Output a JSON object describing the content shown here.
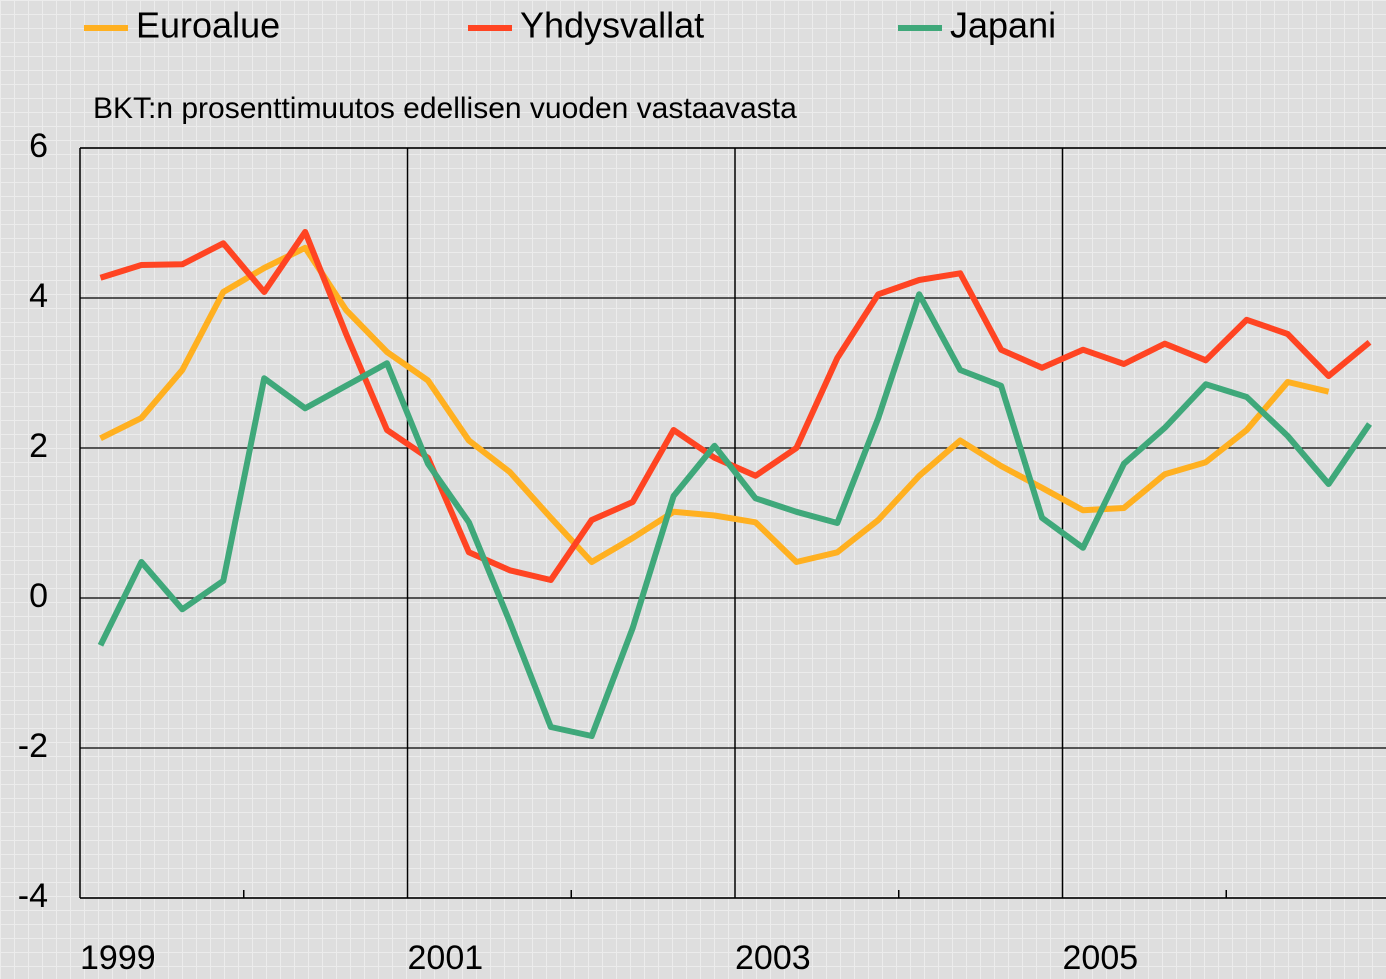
{
  "chart_data": {
    "type": "line",
    "subtitle": "BKT:n prosenttimuutos edellisen vuoden vastaavasta",
    "categories": [
      "1999",
      null,
      null,
      null,
      null,
      null,
      null,
      null,
      "2001",
      null,
      null,
      null,
      null,
      null,
      null,
      null,
      "2003",
      null,
      null,
      null,
      null,
      null,
      null,
      null,
      "2005",
      null,
      null,
      null,
      null,
      null,
      null,
      null
    ],
    "series": [
      {
        "name": "Euroalue",
        "color": "#ffb020",
        "values": [
          2.13,
          2.4,
          3.04,
          4.08,
          4.4,
          4.67,
          3.84,
          3.28,
          2.9,
          2.1,
          1.68,
          1.07,
          0.48,
          0.8,
          1.15,
          1.1,
          1.01,
          0.48,
          0.61,
          1.04,
          1.63,
          2.1,
          1.76,
          1.47,
          1.17,
          1.2,
          1.65,
          1.81,
          2.24,
          2.88,
          2.75,
          null
        ]
      },
      {
        "name": "Yhdysvallat",
        "color": "#ff4422",
        "values": [
          4.27,
          4.44,
          4.45,
          4.73,
          4.08,
          4.88,
          3.52,
          2.24,
          1.87,
          0.61,
          0.37,
          0.24,
          1.04,
          1.28,
          2.24,
          1.87,
          1.63,
          2.0,
          3.2,
          4.05,
          4.24,
          4.33,
          3.31,
          3.07,
          3.31,
          3.12,
          3.39,
          3.17,
          3.71,
          3.52,
          2.96,
          3.41
        ]
      },
      {
        "name": "Japani",
        "color": "#3fa87a",
        "values": [
          -0.63,
          0.48,
          -0.15,
          0.23,
          2.93,
          2.53,
          2.83,
          3.13,
          1.79,
          1.01,
          -0.32,
          -1.72,
          -1.84,
          -0.4,
          1.36,
          2.03,
          1.33,
          1.15,
          1.0,
          2.4,
          4.05,
          3.04,
          2.83,
          1.07,
          0.67,
          1.79,
          2.27,
          2.85,
          2.68,
          2.16,
          1.52,
          2.32
        ]
      }
    ],
    "ylim": [
      -4,
      6
    ],
    "yticks": [
      -4,
      -2,
      0,
      2,
      4,
      6
    ],
    "grid": true,
    "legend": "top"
  }
}
